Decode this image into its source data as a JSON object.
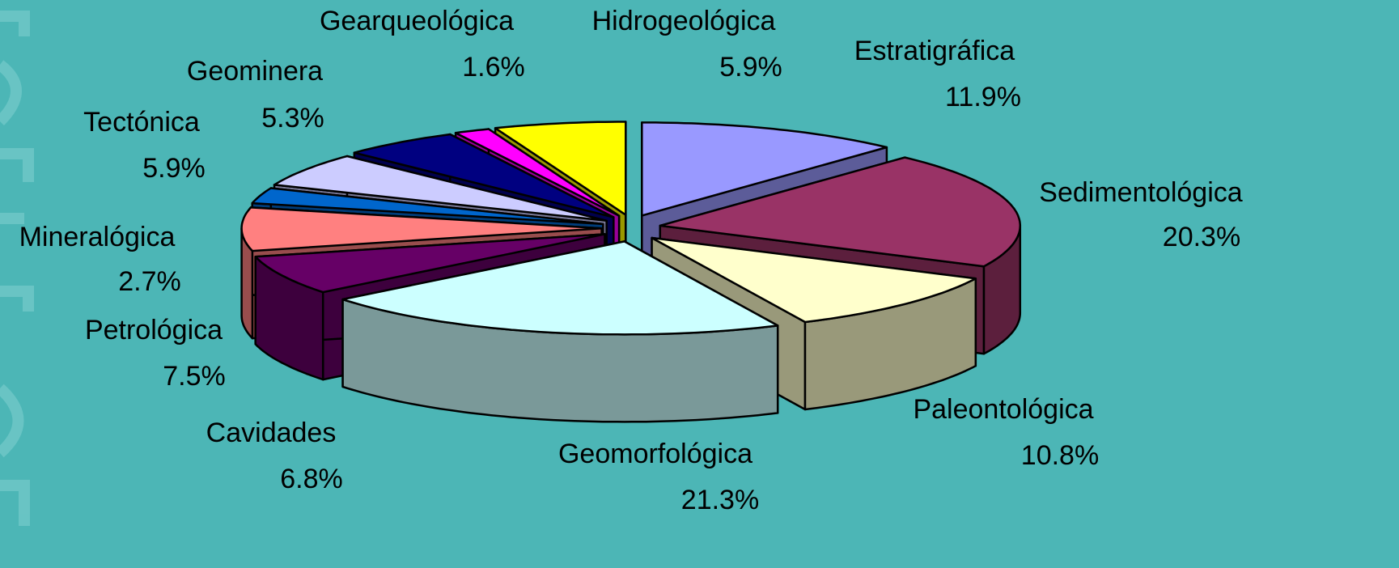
{
  "chart_data": {
    "type": "pie3d",
    "categories": [
      "Estratigráfica",
      "Sedimentológica",
      "Paleontológica",
      "Geomorfológica",
      "Cavidades",
      "Petrológica",
      "Mineralógica",
      "Tectónica",
      "Geominera",
      "Gearqueológica",
      "Hidrogeológica"
    ],
    "values": [
      11.9,
      20.3,
      10.8,
      21.3,
      6.8,
      7.5,
      2.7,
      5.9,
      5.3,
      1.6,
      5.9
    ],
    "value_labels": [
      "11.9%",
      "20.3%",
      "10.8%",
      "21.3%",
      "6.8%",
      "7.5%",
      "2.7%",
      "5.9%",
      "5.3%",
      "1.6%",
      "5.9%"
    ],
    "colors": [
      "#9999ff",
      "#993366",
      "#ffffcc",
      "#ccffff",
      "#660066",
      "#ff8080",
      "#0066cc",
      "#ccccff",
      "#000080",
      "#ff00ff",
      "#ffff00"
    ]
  }
}
